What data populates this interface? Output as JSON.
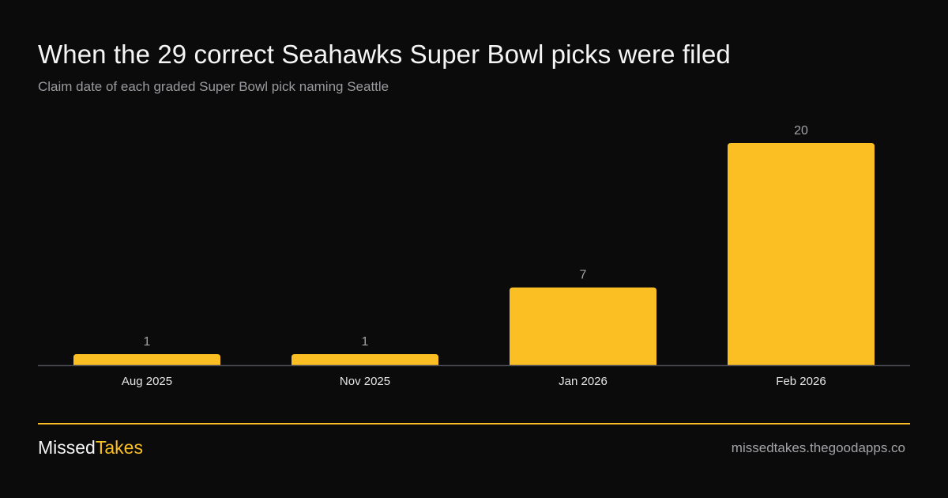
{
  "colors": {
    "background": "#0b0b0b",
    "bar": "#fbbf24",
    "accent": "#fbbf24",
    "axis": "#4a4a55",
    "value_label": "#a3a3a8",
    "tick_label": "#e5e5e5"
  },
  "chart_data": {
    "type": "bar",
    "title": "When the 29 correct Seahawks Super Bowl picks were filed",
    "subtitle": "Claim date of each graded Super Bowl pick naming Seattle",
    "categories": [
      "Aug 2025",
      "Nov 2025",
      "Jan 2026",
      "Feb 2026"
    ],
    "values": [
      1,
      1,
      7,
      20
    ],
    "data_labels": [
      "1",
      "1",
      "7",
      "20"
    ],
    "ylim": [
      0,
      20
    ],
    "grid": false,
    "legend": "none"
  },
  "footer": {
    "brand_part1": "Missed",
    "brand_part2": "Takes",
    "site": "missedtakes.thegoodapps.co"
  }
}
